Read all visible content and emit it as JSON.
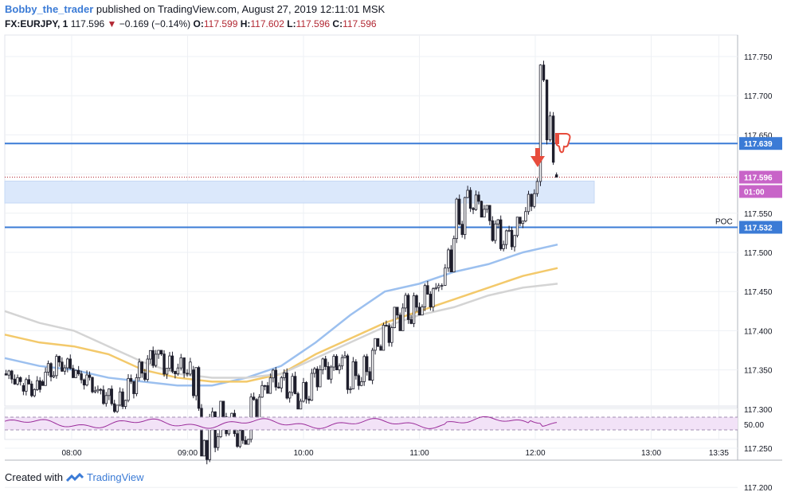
{
  "header": {
    "author": "Bobby_the_trader",
    "published_text": "published on TradingView.com, August 27, 2019 12:11:01 MSK"
  },
  "symbol_line": {
    "symbol": "FX:EURJPY, 1",
    "last": "117.596",
    "change": "−0.169 (−0.14%)",
    "o_label": "O:",
    "o_value": "117.599",
    "h_label": "H:",
    "h_value": "117.602",
    "l_label": "L:",
    "l_value": "117.596",
    "c_label": "C:",
    "c_value": "117.596"
  },
  "footer": {
    "created_with": "Created with",
    "brand": "TradingView"
  },
  "colors": {
    "candle_up": "#ffffff",
    "candle_down": "#1e1e2c",
    "level_line": "#3b7bd6",
    "zone_fill": "#dbe8fb",
    "ma_blue": "#9cc0ef",
    "ma_orange": "#f3c96b",
    "ma_grey": "#d4d4d4",
    "price_tag": "#c864c8",
    "rsi_line": "#9b2d9b",
    "rsi_band": "#f2e2f7",
    "arrow_red": "#e74c3c"
  },
  "chart_data": {
    "type": "candlestick",
    "x_tick_labels": [
      "08:00",
      "09:00",
      "10:00",
      "11:00",
      "12:00",
      "13:00",
      "13:35"
    ],
    "y_tick_labels": [
      "117.750",
      "117.700",
      "117.650",
      "117.600",
      "117.550",
      "117.500",
      "117.450",
      "117.400",
      "117.350",
      "117.300",
      "117.250",
      "117.200"
    ],
    "ylim": [
      117.17,
      117.79
    ],
    "price_tags": {
      "level_high": "117.639",
      "last_price": "117.596",
      "countdown": "01:00",
      "level_low": "117.532"
    },
    "poc_label": "POC",
    "levels": [
      117.639,
      117.532
    ],
    "zone": [
      117.563,
      117.591
    ],
    "last_price": 117.596,
    "rsi": {
      "tick_label": "50.00",
      "band": [
        30,
        70
      ]
    },
    "ohlc_approx": [
      {
        "t": "07:26",
        "o": 117.345,
        "h": 117.35,
        "l": 117.33,
        "c": 117.335
      },
      {
        "t": "07:35",
        "o": 117.33,
        "h": 117.345,
        "l": 117.315,
        "c": 117.325
      },
      {
        "t": "07:45",
        "o": 117.335,
        "h": 117.37,
        "l": 117.33,
        "c": 117.36
      },
      {
        "t": "07:55",
        "o": 117.36,
        "h": 117.37,
        "l": 117.34,
        "c": 117.345
      },
      {
        "t": "08:05",
        "o": 117.345,
        "h": 117.35,
        "l": 117.32,
        "c": 117.325
      },
      {
        "t": "08:15",
        "o": 117.325,
        "h": 117.33,
        "l": 117.295,
        "c": 117.305
      },
      {
        "t": "08:25",
        "o": 117.305,
        "h": 117.345,
        "l": 117.3,
        "c": 117.34
      },
      {
        "t": "08:35",
        "o": 117.34,
        "h": 117.38,
        "l": 117.335,
        "c": 117.37
      },
      {
        "t": "08:45",
        "o": 117.37,
        "h": 117.375,
        "l": 117.33,
        "c": 117.345
      },
      {
        "t": "08:55",
        "o": 117.345,
        "h": 117.38,
        "l": 117.335,
        "c": 117.36
      },
      {
        "t": "09:03",
        "o": 117.35,
        "h": 117.355,
        "l": 117.24,
        "c": 117.26
      },
      {
        "t": "09:10",
        "o": 117.26,
        "h": 117.31,
        "l": 117.215,
        "c": 117.29
      },
      {
        "t": "09:20",
        "o": 117.29,
        "h": 117.3,
        "l": 117.25,
        "c": 117.26
      },
      {
        "t": "09:30",
        "o": 117.26,
        "h": 117.34,
        "l": 117.255,
        "c": 117.33
      },
      {
        "t": "09:40",
        "o": 117.33,
        "h": 117.365,
        "l": 117.32,
        "c": 117.34
      },
      {
        "t": "09:50",
        "o": 117.34,
        "h": 117.355,
        "l": 117.3,
        "c": 117.31
      },
      {
        "t": "10:00",
        "o": 117.31,
        "h": 117.36,
        "l": 117.305,
        "c": 117.35
      },
      {
        "t": "10:10",
        "o": 117.35,
        "h": 117.37,
        "l": 117.33,
        "c": 117.355
      },
      {
        "t": "10:20",
        "o": 117.355,
        "h": 117.385,
        "l": 117.31,
        "c": 117.33
      },
      {
        "t": "10:30",
        "o": 117.33,
        "h": 117.39,
        "l": 117.325,
        "c": 117.38
      },
      {
        "t": "10:40",
        "o": 117.38,
        "h": 117.43,
        "l": 117.375,
        "c": 117.42
      },
      {
        "t": "10:50",
        "o": 117.42,
        "h": 117.465,
        "l": 117.4,
        "c": 117.43
      },
      {
        "t": "11:00",
        "o": 117.43,
        "h": 117.47,
        "l": 117.42,
        "c": 117.455
      },
      {
        "t": "11:10",
        "o": 117.455,
        "h": 117.485,
        "l": 117.44,
        "c": 117.48
      },
      {
        "t": "11:15",
        "o": 117.48,
        "h": 117.58,
        "l": 117.475,
        "c": 117.57
      },
      {
        "t": "11:25",
        "o": 117.57,
        "h": 117.585,
        "l": 117.545,
        "c": 117.555
      },
      {
        "t": "11:35",
        "o": 117.555,
        "h": 117.56,
        "l": 117.5,
        "c": 117.51
      },
      {
        "t": "11:45",
        "o": 117.51,
        "h": 117.545,
        "l": 117.495,
        "c": 117.54
      },
      {
        "t": "11:55",
        "o": 117.54,
        "h": 117.585,
        "l": 117.535,
        "c": 117.575
      },
      {
        "t": "12:01",
        "o": 117.575,
        "h": 117.755,
        "l": 117.55,
        "c": 117.72
      },
      {
        "t": "12:06",
        "o": 117.72,
        "h": 117.73,
        "l": 117.6,
        "c": 117.615
      },
      {
        "t": "12:11",
        "o": 117.599,
        "h": 117.602,
        "l": 117.596,
        "c": 117.596
      }
    ],
    "ma_series": [
      {
        "color": "blue",
        "values": [
          117.365,
          117.355,
          117.35,
          117.34,
          117.335,
          117.33,
          117.33,
          117.34,
          117.355,
          117.385,
          117.42,
          117.45,
          117.46,
          117.475,
          117.485,
          117.5,
          117.51
        ]
      },
      {
        "color": "orange",
        "values": [
          117.395,
          117.385,
          117.38,
          117.37,
          117.35,
          117.34,
          117.335,
          117.335,
          117.345,
          117.37,
          117.39,
          117.41,
          117.425,
          117.44,
          117.455,
          117.47,
          117.48
        ]
      },
      {
        "color": "grey",
        "values": [
          117.425,
          117.41,
          117.4,
          117.38,
          117.36,
          117.345,
          117.34,
          117.34,
          117.345,
          117.365,
          117.385,
          117.405,
          117.42,
          117.43,
          117.445,
          117.455,
          117.46
        ]
      }
    ]
  }
}
